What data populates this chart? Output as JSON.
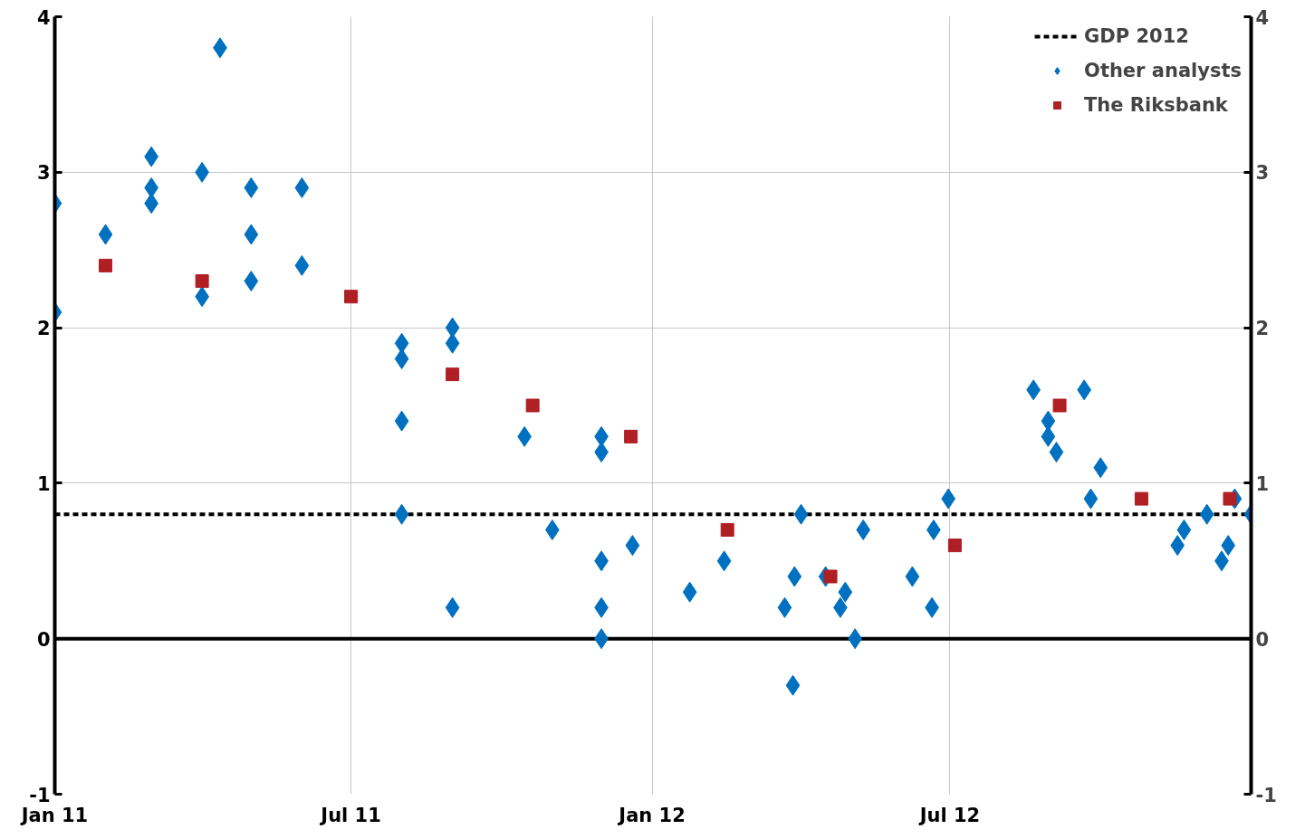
{
  "chart_data": {
    "type": "scatter",
    "xlim": [
      "2011-01-01",
      "2013-01-01"
    ],
    "ylim": [
      -1,
      4
    ],
    "y2lim": [
      -1,
      4
    ],
    "xticks": [
      {
        "value": "2011-01-01",
        "label": "Jan 11"
      },
      {
        "value": "2011-07-01",
        "label": "Jul 11"
      },
      {
        "value": "2012-01-01",
        "label": "Jan 12"
      },
      {
        "value": "2012-07-01",
        "label": "Jul 12"
      }
    ],
    "yticks": [
      -1,
      0,
      1,
      2,
      3,
      4
    ],
    "y2ticks": [
      -1,
      0,
      1,
      2,
      3,
      4
    ],
    "grid": true,
    "legend": "top right",
    "ref_lines": [
      {
        "axis": "y",
        "value": 0.8,
        "label": "GDP 2012",
        "color": "#000000",
        "line_style": "dashed"
      },
      {
        "axis": "y",
        "value": 0,
        "color": "#000000",
        "line_style": "solid"
      }
    ],
    "series": [
      {
        "name": "Other analysts",
        "color": "#0070c0",
        "marker": "diamond",
        "x": [
          "2011-01-01",
          "2011-01-01",
          "2011-02-01",
          "2011-03-01",
          "2011-03-01",
          "2011-03-01",
          "2011-04-01",
          "2011-04-01",
          "2011-04-12",
          "2011-05-01",
          "2011-05-01",
          "2011-05-01",
          "2011-06-01",
          "2011-06-01",
          "2011-08-01",
          "2011-08-01",
          "2011-08-01",
          "2011-08-01",
          "2011-09-01",
          "2011-09-01",
          "2011-09-01",
          "2011-10-15",
          "2011-11-01",
          "2011-12-01",
          "2011-12-01",
          "2011-12-01",
          "2011-12-01",
          "2011-12-01",
          "2011-12-20",
          "2012-01-24",
          "2012-02-14",
          "2012-03-22",
          "2012-03-27",
          "2012-03-28",
          "2012-04-01",
          "2012-04-16",
          "2012-04-25",
          "2012-04-28",
          "2012-05-04",
          "2012-05-09",
          "2012-06-08",
          "2012-06-20",
          "2012-06-21",
          "2012-06-30",
          "2012-08-21",
          "2012-08-30",
          "2012-08-30",
          "2012-09-04",
          "2012-09-21",
          "2012-09-25",
          "2012-10-01",
          "2012-11-17",
          "2012-11-21",
          "2012-12-05",
          "2012-12-14",
          "2012-12-18",
          "2012-12-22",
          "2013-01-01"
        ],
        "values": [
          2.8,
          2.1,
          2.6,
          3.1,
          2.9,
          2.8,
          3.0,
          2.2,
          3.8,
          2.9,
          2.6,
          2.3,
          2.9,
          2.4,
          1.9,
          1.8,
          1.4,
          0.8,
          2.0,
          1.9,
          0.2,
          1.3,
          0.7,
          1.3,
          1.2,
          0.5,
          0.2,
          0.0,
          0.6,
          0.3,
          0.5,
          0.2,
          -0.3,
          0.4,
          0.8,
          0.4,
          0.2,
          0.3,
          0.0,
          0.7,
          0.4,
          0.2,
          0.7,
          0.9,
          1.6,
          1.4,
          1.3,
          1.2,
          1.6,
          0.9,
          1.1,
          0.6,
          0.7,
          0.8,
          0.5,
          0.6,
          0.9,
          0.8
        ]
      },
      {
        "name": "The Riksbank",
        "color": "#b01f24",
        "marker": "square",
        "x": [
          "2011-02-01",
          "2011-04-01",
          "2011-07-01",
          "2011-09-01",
          "2011-10-20",
          "2011-12-19",
          "2012-02-16",
          "2012-04-19",
          "2012-07-04",
          "2012-09-06",
          "2012-10-26",
          "2012-12-19"
        ],
        "values": [
          2.4,
          2.3,
          2.2,
          1.7,
          1.5,
          1.3,
          0.7,
          0.4,
          0.6,
          1.5,
          0.9,
          0.9
        ]
      }
    ]
  }
}
